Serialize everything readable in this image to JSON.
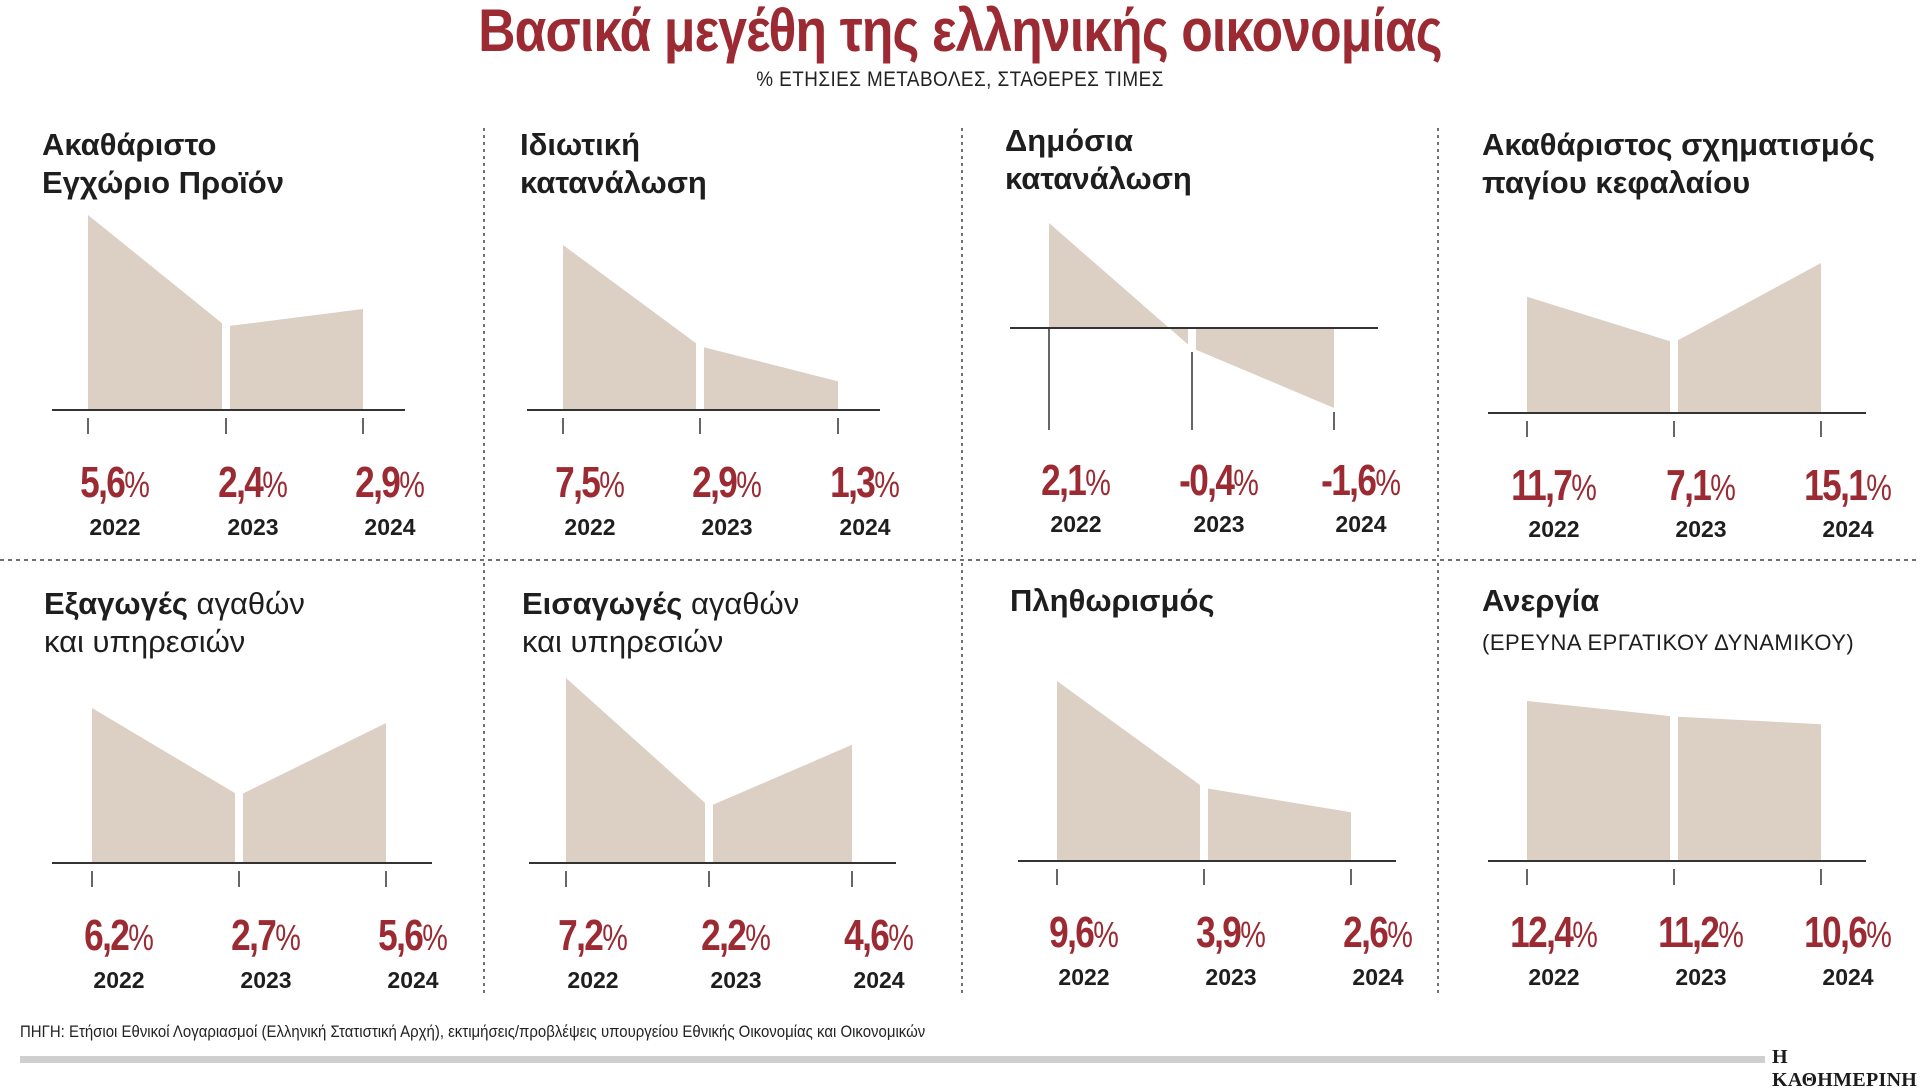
{
  "header": {
    "title": "Βασικά μεγέθη της ελληνικής οικονομίας",
    "subtitle": "% ΕΤΗΣΙΕΣ ΜΕΤΑΒΟΛΕΣ, ΣΤΑΘΕΡΕΣ ΤΙΜΕΣ"
  },
  "colors": {
    "accent": "#9b2a33",
    "fill": "#dccfc3",
    "axis": "#333333",
    "text": "#1e1e1e"
  },
  "panels": [
    {
      "title_bold": "Ακαθάριστο",
      "title_bold2": "Εγχώριο Προϊόν",
      "title_light": "",
      "title_light2": "",
      "note": ""
    },
    {
      "title_bold": "Ιδιωτική",
      "title_bold2": "κατανάλωση",
      "title_light": "",
      "title_light2": "",
      "note": ""
    },
    {
      "title_bold": "Δημόσια",
      "title_bold2": "κατανάλωση",
      "title_light": "",
      "title_light2": "",
      "note": ""
    },
    {
      "title_bold": "Ακαθάριστος σχηματισμός",
      "title_bold2": "παγίου κεφαλαίου",
      "title_light": "",
      "title_light2": "",
      "note": ""
    },
    {
      "title_bold": "Εξαγωγές",
      "title_bold2": "",
      "title_light": " αγαθών",
      "title_light2": "και υπηρεσιών",
      "note": ""
    },
    {
      "title_bold": "Εισαγωγές",
      "title_bold2": "",
      "title_light": " αγαθών",
      "title_light2": "και υπηρεσιών",
      "note": ""
    },
    {
      "title_bold": "Πληθωρισμός",
      "title_bold2": "",
      "title_light": "",
      "title_light2": "",
      "note": ""
    },
    {
      "title_bold": "Ανεργία",
      "title_bold2": "",
      "title_light": "",
      "title_light2": "",
      "note": "(ΕΡΕΥΝΑ ΕΡΓΑΤΙΚΟΥ ΔΥΝΑΜΙΚΟΥ)"
    }
  ],
  "chart_data": [
    {
      "type": "area",
      "title": "Ακαθάριστο Εγχώριο Προϊόν",
      "categories": [
        "2022",
        "2023",
        "2024"
      ],
      "values": [
        5.6,
        2.4,
        2.9
      ],
      "labels": [
        "5,6",
        "2,4",
        "2,9"
      ],
      "unit": "%"
    },
    {
      "type": "area",
      "title": "Ιδιωτική κατανάλωση",
      "categories": [
        "2022",
        "2023",
        "2024"
      ],
      "values": [
        7.5,
        2.9,
        1.3
      ],
      "labels": [
        "7,5",
        "2,9",
        "1,3"
      ],
      "unit": "%"
    },
    {
      "type": "area",
      "title": "Δημόσια κατανάλωση",
      "categories": [
        "2022",
        "2023",
        "2024"
      ],
      "values": [
        2.1,
        -0.4,
        -1.6
      ],
      "labels": [
        "2,1",
        "-0,4",
        "-1,6"
      ],
      "unit": "%"
    },
    {
      "type": "area",
      "title": "Ακαθάριστος σχηματισμός παγίου κεφαλαίου",
      "categories": [
        "2022",
        "2023",
        "2024"
      ],
      "values": [
        11.7,
        7.1,
        15.1
      ],
      "labels": [
        "11,7",
        "7,1",
        "15,1"
      ],
      "unit": "%"
    },
    {
      "type": "area",
      "title": "Εξαγωγές αγαθών και υπηρεσιών",
      "categories": [
        "2022",
        "2023",
        "2024"
      ],
      "values": [
        6.2,
        2.7,
        5.6
      ],
      "labels": [
        "6,2",
        "2,7",
        "5,6"
      ],
      "unit": "%"
    },
    {
      "type": "area",
      "title": "Εισαγωγές αγαθών και υπηρεσιών",
      "categories": [
        "2022",
        "2023",
        "2024"
      ],
      "values": [
        7.2,
        2.2,
        4.6
      ],
      "labels": [
        "7,2",
        "2,2",
        "4,6"
      ],
      "unit": "%"
    },
    {
      "type": "area",
      "title": "Πληθωρισμός",
      "categories": [
        "2022",
        "2023",
        "2024"
      ],
      "values": [
        9.6,
        3.9,
        2.6
      ],
      "labels": [
        "9,6",
        "3,9",
        "2,6"
      ],
      "unit": "%"
    },
    {
      "type": "area",
      "title": "Ανεργία (ΕΡΕΥΝΑ ΕΡΓΑΤΙΚΟΥ ΔΥΝΑΜΙΚΟΥ)",
      "categories": [
        "2022",
        "2023",
        "2024"
      ],
      "values": [
        12.4,
        11.2,
        10.6
      ],
      "labels": [
        "12,4",
        "11,2",
        "10,6"
      ],
      "unit": "%"
    }
  ],
  "footer": {
    "source": "ΠΗΓΗ: Ετήσιοι Εθνικοί Λογαριασμοί (Ελληνική Στατιστική Αρχή), εκτιμήσεις/προβλέψεις υπουργείου Εθνικής Οικονομίας και Οικονομικών",
    "brand": "Η ΚΑΘΗΜΕΡΙΝΗ"
  }
}
